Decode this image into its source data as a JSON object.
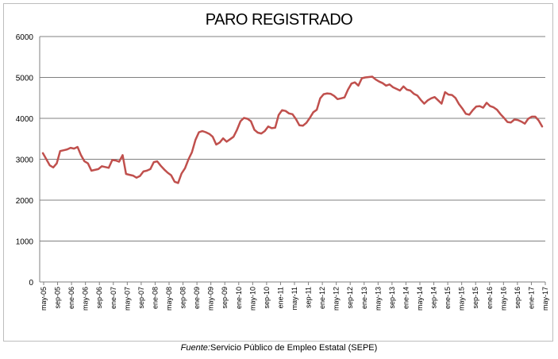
{
  "chart_data": {
    "type": "line",
    "title": "PARO REGISTRADO",
    "source_label": "Fuente:",
    "source_text": "Servicio Público de Empleo Estatal (SEPE)",
    "ylim": [
      0,
      6000
    ],
    "yticks": [
      0,
      1000,
      2000,
      3000,
      4000,
      5000,
      6000
    ],
    "grid": true,
    "line_color": "#c0504d",
    "grid_color": "#808080",
    "x_tick_labels": [
      "may-05",
      "sep-05",
      "ene-06",
      "may-06",
      "sep-06",
      "ene-07",
      "may-07",
      "sep-07",
      "ene-08",
      "may-08",
      "sep-08",
      "ene-09",
      "may-09",
      "sep-09",
      "ene-10",
      "may-10",
      "sep-10",
      "ene-11",
      "may-11",
      "sep-11",
      "ene-12",
      "may-12",
      "sep-12",
      "ene-13",
      "may-13",
      "sep-13",
      "ene-14",
      "may-14",
      "sep-14",
      "ene-15",
      "may-15",
      "sep-15",
      "ene-16",
      "may-16",
      "sep-16",
      "ene-17",
      "may-17"
    ],
    "series": [
      {
        "values": [
          3150,
          3000,
          2850,
          2800,
          2900,
          3200,
          3220,
          3240,
          3280,
          3260,
          3300,
          3100,
          2950,
          2900,
          2720,
          2740,
          2760,
          2830,
          2810,
          2790,
          2980,
          2970,
          2940,
          3100,
          2640,
          2620,
          2600,
          2550,
          2590,
          2700,
          2720,
          2760,
          2930,
          2950,
          2840,
          2750,
          2670,
          2610,
          2450,
          2420,
          2650,
          2780,
          3000,
          3170,
          3470,
          3660,
          3690,
          3660,
          3620,
          3550,
          3360,
          3410,
          3510,
          3430,
          3490,
          3550,
          3720,
          3930,
          4010,
          3990,
          3930,
          3720,
          3650,
          3630,
          3690,
          3800,
          3760,
          3770,
          4080,
          4200,
          4180,
          4120,
          4100,
          3980,
          3830,
          3820,
          3890,
          4010,
          4150,
          4210,
          4490,
          4590,
          4610,
          4600,
          4550,
          4470,
          4490,
          4510,
          4700,
          4850,
          4880,
          4800,
          4980,
          5000,
          5010,
          5020,
          4950,
          4900,
          4860,
          4800,
          4830,
          4760,
          4720,
          4680,
          4780,
          4700,
          4680,
          4600,
          4560,
          4450,
          4360,
          4440,
          4490,
          4520,
          4440,
          4360,
          4640,
          4580,
          4570,
          4500,
          4350,
          4240,
          4110,
          4090,
          4200,
          4290,
          4300,
          4260,
          4380,
          4300,
          4270,
          4210,
          4100,
          4010,
          3910,
          3900,
          3970,
          3960,
          3920,
          3870,
          3990,
          4040,
          4040,
          3950,
          3800
        ]
      }
    ]
  }
}
